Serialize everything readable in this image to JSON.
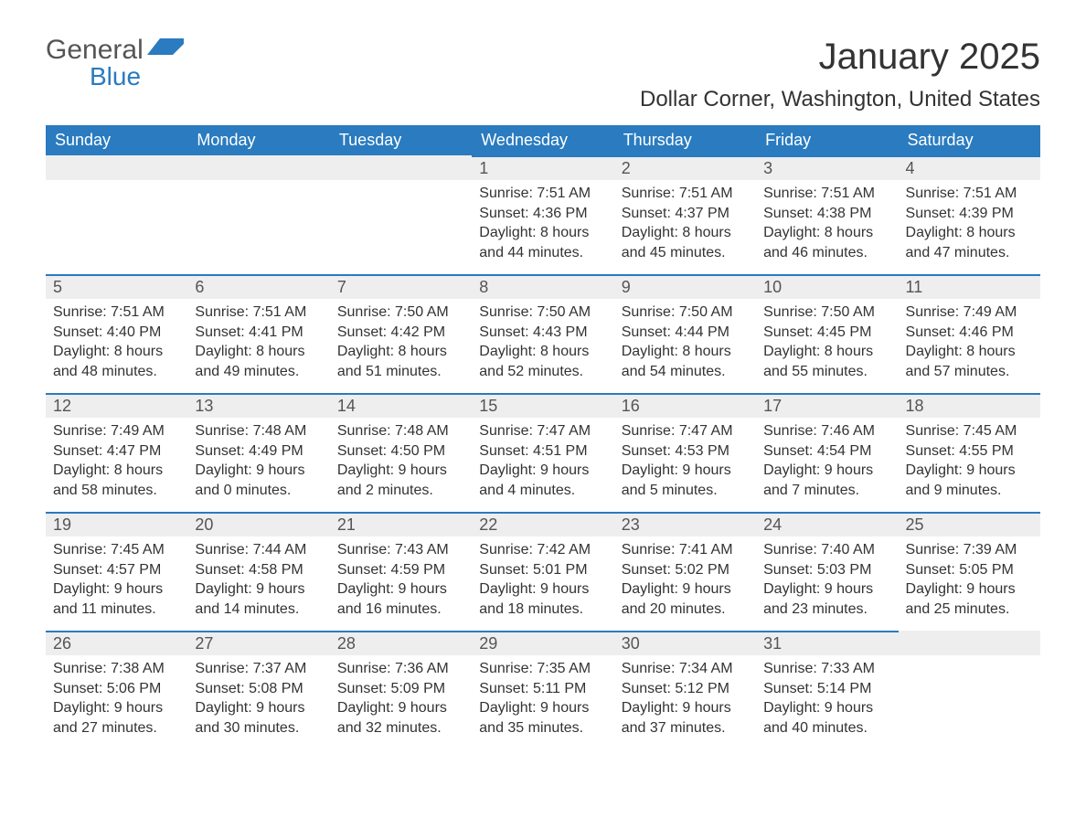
{
  "logo": {
    "text_general": "General",
    "text_blue": "Blue"
  },
  "title": "January 2025",
  "location": "Dollar Corner, Washington, United States",
  "colors": {
    "header_bg": "#2a7bbf",
    "header_text": "#ffffff",
    "daynum_bg": "#eeeeee",
    "daynum_border": "#2a7bbf",
    "body_text": "#333333",
    "page_bg": "#ffffff",
    "logo_blue": "#2a7bbf"
  },
  "fonts": {
    "title_size": 40,
    "location_size": 24,
    "header_size": 18,
    "daynum_size": 18,
    "cell_size": 16
  },
  "weekdays": [
    "Sunday",
    "Monday",
    "Tuesday",
    "Wednesday",
    "Thursday",
    "Friday",
    "Saturday"
  ],
  "weeks": [
    [
      null,
      null,
      null,
      {
        "day": "1",
        "sunrise": "Sunrise: 7:51 AM",
        "sunset": "Sunset: 4:36 PM",
        "daylight": "Daylight: 8 hours and 44 minutes."
      },
      {
        "day": "2",
        "sunrise": "Sunrise: 7:51 AM",
        "sunset": "Sunset: 4:37 PM",
        "daylight": "Daylight: 8 hours and 45 minutes."
      },
      {
        "day": "3",
        "sunrise": "Sunrise: 7:51 AM",
        "sunset": "Sunset: 4:38 PM",
        "daylight": "Daylight: 8 hours and 46 minutes."
      },
      {
        "day": "4",
        "sunrise": "Sunrise: 7:51 AM",
        "sunset": "Sunset: 4:39 PM",
        "daylight": "Daylight: 8 hours and 47 minutes."
      }
    ],
    [
      {
        "day": "5",
        "sunrise": "Sunrise: 7:51 AM",
        "sunset": "Sunset: 4:40 PM",
        "daylight": "Daylight: 8 hours and 48 minutes."
      },
      {
        "day": "6",
        "sunrise": "Sunrise: 7:51 AM",
        "sunset": "Sunset: 4:41 PM",
        "daylight": "Daylight: 8 hours and 49 minutes."
      },
      {
        "day": "7",
        "sunrise": "Sunrise: 7:50 AM",
        "sunset": "Sunset: 4:42 PM",
        "daylight": "Daylight: 8 hours and 51 minutes."
      },
      {
        "day": "8",
        "sunrise": "Sunrise: 7:50 AM",
        "sunset": "Sunset: 4:43 PM",
        "daylight": "Daylight: 8 hours and 52 minutes."
      },
      {
        "day": "9",
        "sunrise": "Sunrise: 7:50 AM",
        "sunset": "Sunset: 4:44 PM",
        "daylight": "Daylight: 8 hours and 54 minutes."
      },
      {
        "day": "10",
        "sunrise": "Sunrise: 7:50 AM",
        "sunset": "Sunset: 4:45 PM",
        "daylight": "Daylight: 8 hours and 55 minutes."
      },
      {
        "day": "11",
        "sunrise": "Sunrise: 7:49 AM",
        "sunset": "Sunset: 4:46 PM",
        "daylight": "Daylight: 8 hours and 57 minutes."
      }
    ],
    [
      {
        "day": "12",
        "sunrise": "Sunrise: 7:49 AM",
        "sunset": "Sunset: 4:47 PM",
        "daylight": "Daylight: 8 hours and 58 minutes."
      },
      {
        "day": "13",
        "sunrise": "Sunrise: 7:48 AM",
        "sunset": "Sunset: 4:49 PM",
        "daylight": "Daylight: 9 hours and 0 minutes."
      },
      {
        "day": "14",
        "sunrise": "Sunrise: 7:48 AM",
        "sunset": "Sunset: 4:50 PM",
        "daylight": "Daylight: 9 hours and 2 minutes."
      },
      {
        "day": "15",
        "sunrise": "Sunrise: 7:47 AM",
        "sunset": "Sunset: 4:51 PM",
        "daylight": "Daylight: 9 hours and 4 minutes."
      },
      {
        "day": "16",
        "sunrise": "Sunrise: 7:47 AM",
        "sunset": "Sunset: 4:53 PM",
        "daylight": "Daylight: 9 hours and 5 minutes."
      },
      {
        "day": "17",
        "sunrise": "Sunrise: 7:46 AM",
        "sunset": "Sunset: 4:54 PM",
        "daylight": "Daylight: 9 hours and 7 minutes."
      },
      {
        "day": "18",
        "sunrise": "Sunrise: 7:45 AM",
        "sunset": "Sunset: 4:55 PM",
        "daylight": "Daylight: 9 hours and 9 minutes."
      }
    ],
    [
      {
        "day": "19",
        "sunrise": "Sunrise: 7:45 AM",
        "sunset": "Sunset: 4:57 PM",
        "daylight": "Daylight: 9 hours and 11 minutes."
      },
      {
        "day": "20",
        "sunrise": "Sunrise: 7:44 AM",
        "sunset": "Sunset: 4:58 PM",
        "daylight": "Daylight: 9 hours and 14 minutes."
      },
      {
        "day": "21",
        "sunrise": "Sunrise: 7:43 AM",
        "sunset": "Sunset: 4:59 PM",
        "daylight": "Daylight: 9 hours and 16 minutes."
      },
      {
        "day": "22",
        "sunrise": "Sunrise: 7:42 AM",
        "sunset": "Sunset: 5:01 PM",
        "daylight": "Daylight: 9 hours and 18 minutes."
      },
      {
        "day": "23",
        "sunrise": "Sunrise: 7:41 AM",
        "sunset": "Sunset: 5:02 PM",
        "daylight": "Daylight: 9 hours and 20 minutes."
      },
      {
        "day": "24",
        "sunrise": "Sunrise: 7:40 AM",
        "sunset": "Sunset: 5:03 PM",
        "daylight": "Daylight: 9 hours and 23 minutes."
      },
      {
        "day": "25",
        "sunrise": "Sunrise: 7:39 AM",
        "sunset": "Sunset: 5:05 PM",
        "daylight": "Daylight: 9 hours and 25 minutes."
      }
    ],
    [
      {
        "day": "26",
        "sunrise": "Sunrise: 7:38 AM",
        "sunset": "Sunset: 5:06 PM",
        "daylight": "Daylight: 9 hours and 27 minutes."
      },
      {
        "day": "27",
        "sunrise": "Sunrise: 7:37 AM",
        "sunset": "Sunset: 5:08 PM",
        "daylight": "Daylight: 9 hours and 30 minutes."
      },
      {
        "day": "28",
        "sunrise": "Sunrise: 7:36 AM",
        "sunset": "Sunset: 5:09 PM",
        "daylight": "Daylight: 9 hours and 32 minutes."
      },
      {
        "day": "29",
        "sunrise": "Sunrise: 7:35 AM",
        "sunset": "Sunset: 5:11 PM",
        "daylight": "Daylight: 9 hours and 35 minutes."
      },
      {
        "day": "30",
        "sunrise": "Sunrise: 7:34 AM",
        "sunset": "Sunset: 5:12 PM",
        "daylight": "Daylight: 9 hours and 37 minutes."
      },
      {
        "day": "31",
        "sunrise": "Sunrise: 7:33 AM",
        "sunset": "Sunset: 5:14 PM",
        "daylight": "Daylight: 9 hours and 40 minutes."
      },
      null
    ]
  ]
}
